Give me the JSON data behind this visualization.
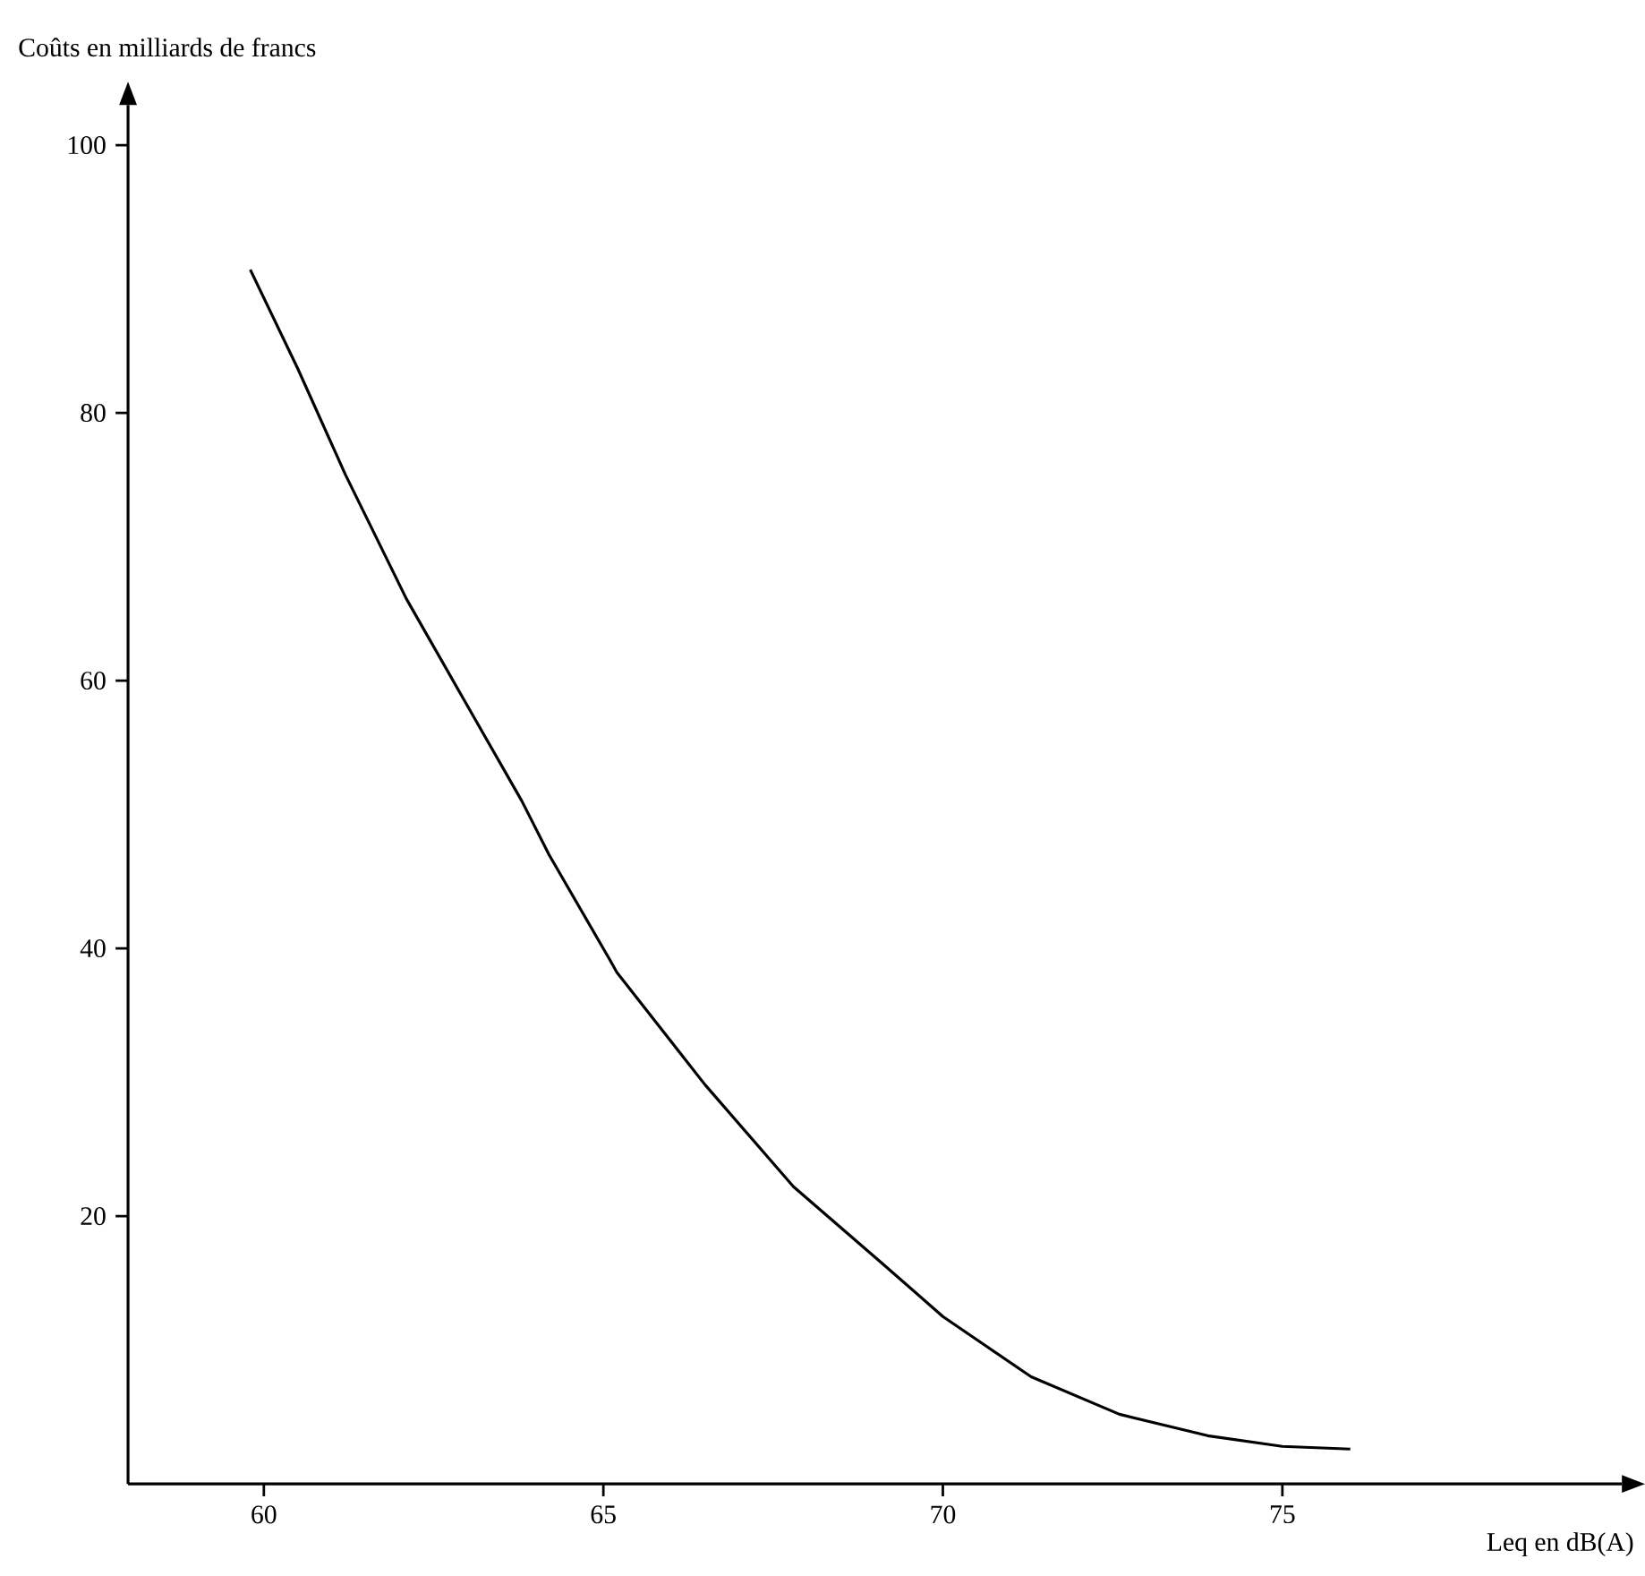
{
  "chart_data": {
    "type": "line",
    "xlabel": "Leq en dB(A)",
    "ylabel": "Coûts en milliards de francs",
    "xlim": [
      58,
      80
    ],
    "ylim": [
      0,
      103
    ],
    "xticks": [
      60,
      65,
      70,
      75
    ],
    "yticks": [
      20,
      40,
      60,
      80,
      100
    ],
    "grid": false,
    "marker": "none",
    "line_style": "solid",
    "series": [
      {
        "color": "#000000",
        "x": [
          59.8,
          60.5,
          61.2,
          62.1,
          63.0,
          63.8,
          64.2,
          65.1,
          65.2,
          66.5,
          67.8,
          69.1,
          70.0,
          71.3,
          72.6,
          73.9,
          75.0,
          76.0
        ],
        "values": [
          90.7,
          83.3,
          75.4,
          66.1,
          58.1,
          51.0,
          47.0,
          39.1,
          38.2,
          29.8,
          22.2,
          16.5,
          12.5,
          8.0,
          5.2,
          3.6,
          2.8,
          2.6
        ]
      }
    ]
  }
}
